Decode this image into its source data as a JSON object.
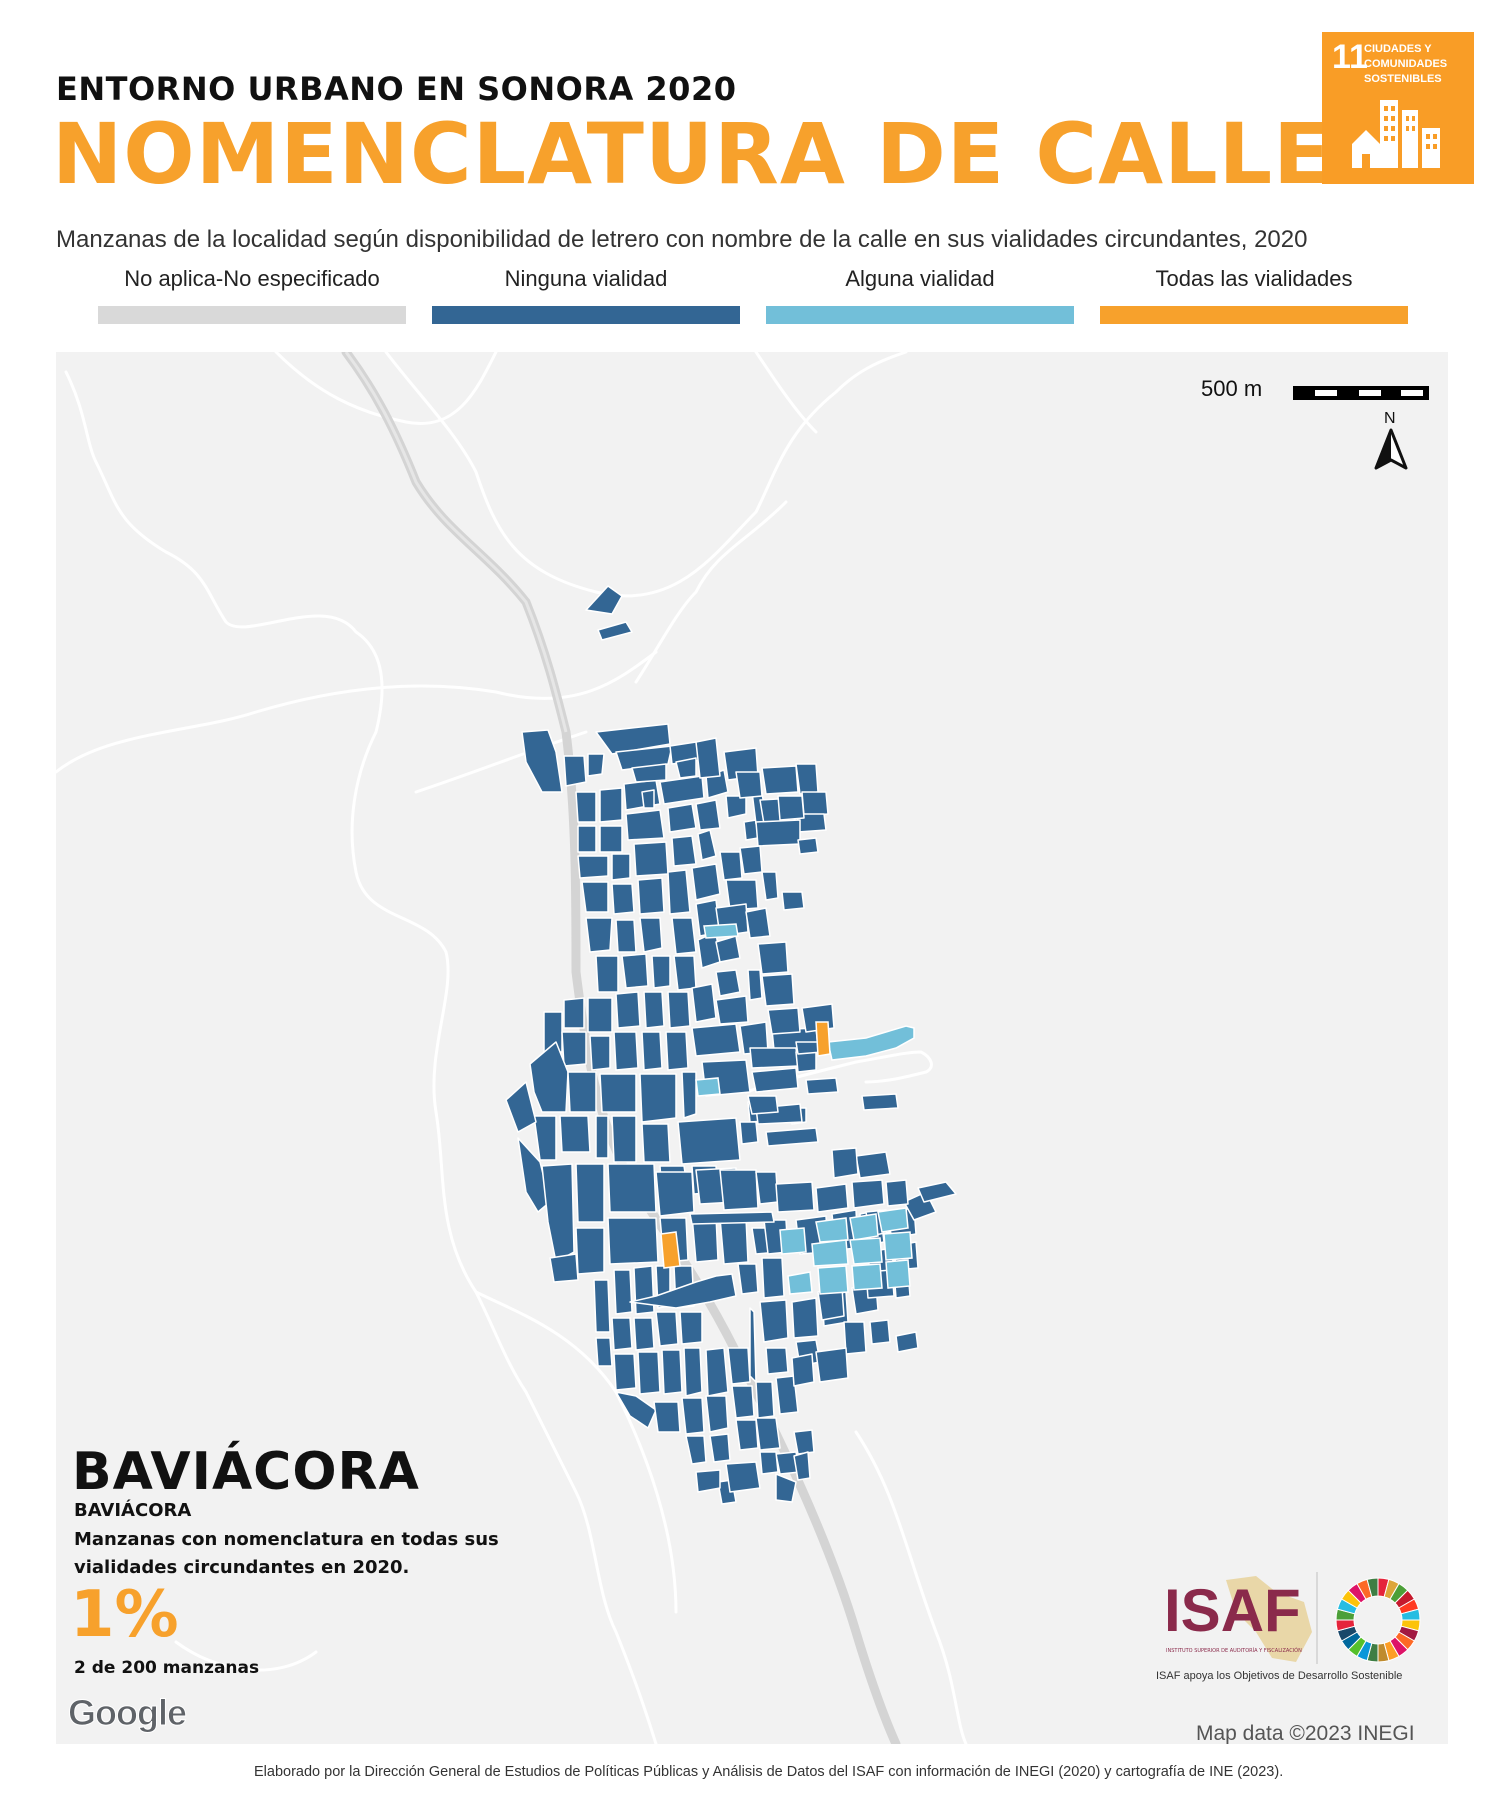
{
  "header": {
    "kicker": "ENTORNO URBANO EN SONORA 2020",
    "title": "NOMENCLATURA DE CALLES",
    "subtitle": "Manzanas de la localidad según disponibilidad de letrero con nombre de la calle en sus vialidades circundantes, 2020"
  },
  "sdg_badge": {
    "number": "11",
    "line1": "CIUDADES Y",
    "line2": "COMUNIDADES",
    "line3": "SOSTENIBLES",
    "icon": "city-buildings-icon",
    "color": "#f99d26"
  },
  "legend": [
    {
      "label": "No aplica-No especificado",
      "color": "#d9d9d9"
    },
    {
      "label": "Ninguna vialidad",
      "color": "#336694"
    },
    {
      "label": "Alguna vialidad",
      "color": "#72bfd9"
    },
    {
      "label": "Todas las vialidades",
      "color": "#f7a12c"
    }
  ],
  "map": {
    "scale_label": "500 m",
    "north_label": "N",
    "north_icon": "north-arrow-icon",
    "background_color": "#f2f2f2",
    "road_color": "#ffffff",
    "highway_color": "#d4d4d4",
    "credit": "Map data ©2023 INEGI",
    "google_logo": "Google"
  },
  "locality": {
    "municipality": "BAVIÁCORA",
    "locality": "BAVIÁCORA",
    "description": "Manzanas con nomenclatura en todas sus vialidades circundantes en 2020.",
    "percent": "1%",
    "count_text": "2 de 200 manzanas"
  },
  "logos": {
    "isaf": "ISAF",
    "isaf_small": "INSTITUTO SUPERIOR DE AUDITORÍA Y FISCALIZACIÓN",
    "isaf_caption": "ISAF apoya los Objetivos de Desarrollo Sostenible",
    "sdg_wheel_icon": "sdg-color-wheel-icon"
  },
  "footer": "Elaborado por la Dirección General de Estudios de Políticas Públicas y Análisis de Datos del ISAF con información de INEGI (2020) y cartografía de INE (2023)."
}
